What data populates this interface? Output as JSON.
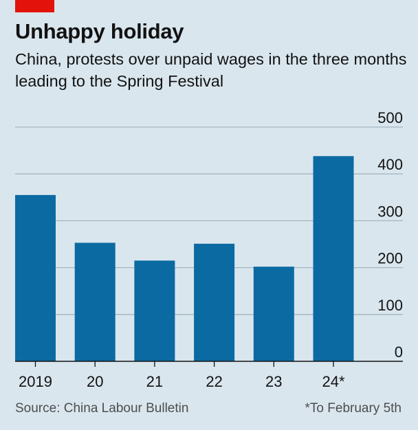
{
  "header": {
    "title": "Unhappy holiday",
    "subtitle": "China, protests over unpaid wages in the three months leading to the Spring Festival"
  },
  "colors": {
    "bar": "#0b6aa2",
    "grid": "#a4b5c0",
    "baseline": "#121212",
    "accent": "#e3120b"
  },
  "chart_data": {
    "type": "bar",
    "title": "Unhappy holiday",
    "subtitle": "China, protests over unpaid wages in the three months leading to the Spring Festival",
    "categories": [
      "2019",
      "20",
      "21",
      "22",
      "23",
      "24*"
    ],
    "values": [
      355,
      253,
      215,
      251,
      202,
      438
    ],
    "ylim": [
      0,
      500
    ],
    "yticks": [
      "0",
      "100",
      "200",
      "300",
      "400",
      "500"
    ],
    "grid": true,
    "xlabel": "",
    "ylabel": ""
  },
  "footer": {
    "source": "Source: China Labour Bulletin",
    "note": "*To February 5th"
  }
}
